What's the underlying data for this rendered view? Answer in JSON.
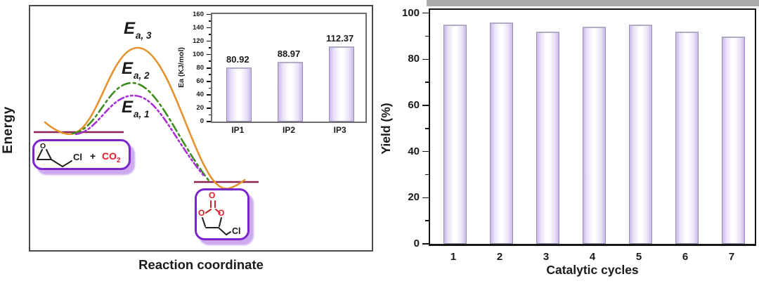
{
  "left_panel": {
    "ylabel": "Energy",
    "xlabel": "Reaction coordinate",
    "curve_labels": [
      {
        "main": "E",
        "sub": "a, 3"
      },
      {
        "main": "E",
        "sub": "a, 2"
      },
      {
        "main": "E",
        "sub": "a, 1"
      }
    ],
    "curves": [
      {
        "name": "Ea,3",
        "color": "#e2922f",
        "style": "solid",
        "barrier": "highest"
      },
      {
        "name": "Ea,2",
        "color": "#3e8d1e",
        "style": "dash-dot",
        "barrier": "middle"
      },
      {
        "name": "Ea,1",
        "color": "#a62fd8",
        "style": "dash-dot-dot",
        "barrier": "lowest"
      }
    ],
    "level_line_color": "#872451",
    "box_border_color": "#7c25cc",
    "reactant_box": {
      "epoxide_o": "O",
      "cl": "Cl",
      "plus": "+",
      "co2_main": "CO",
      "co2_sub": "2",
      "co2_color": "#e01b2c"
    },
    "product_box": {
      "o_top": "O",
      "o_left": "O",
      "o_right": "O",
      "cl": "Cl",
      "o_color": "#e01b2c"
    }
  },
  "chart_data": [
    {
      "type": "bar",
      "title": "",
      "xlabel": "",
      "ylabel": "Ea (KJ/mol)",
      "categories": [
        "IP1",
        "IP2",
        "IP3"
      ],
      "values": [
        80.92,
        88.97,
        112.37
      ],
      "value_labels": [
        "80.92",
        "88.97",
        "112.37"
      ],
      "ylim": [
        0,
        160
      ],
      "y_ticks": [
        0,
        20,
        40,
        60,
        80,
        100,
        120,
        140,
        160
      ],
      "y_minor_step": 10,
      "bar_fill_edge": "#c8b6ea",
      "bar_fill_center": "#ffffff",
      "grid": false,
      "legend": "none"
    },
    {
      "type": "bar",
      "title": "",
      "xlabel": "Catalytic cycles",
      "ylabel": "Yield (%)",
      "categories": [
        "1",
        "2",
        "3",
        "4",
        "5",
        "6",
        "7"
      ],
      "values": [
        95,
        96,
        92,
        94,
        95,
        92,
        90
      ],
      "ylim": [
        0,
        100
      ],
      "y_ticks": [
        0,
        20,
        40,
        60,
        80,
        100
      ],
      "y_minor_step": 10,
      "bar_fill_edge": "#c8b6ea",
      "bar_fill_center": "#ffffff",
      "grid": false,
      "legend": "none"
    },
    {
      "type": "line",
      "title": "",
      "xlabel": "Reaction coordinate",
      "ylabel": "Energy",
      "series": [
        {
          "name": "Ea, 3",
          "color": "#e2922f",
          "line_style": "solid",
          "barrier_rank": "highest"
        },
        {
          "name": "Ea, 2",
          "color": "#3e8d1e",
          "line_style": "dash-dot",
          "barrier_rank": "middle"
        },
        {
          "name": "Ea, 1",
          "color": "#a62fd8",
          "line_style": "dash-dot-dot",
          "barrier_rank": "lowest"
        }
      ],
      "annotations": [
        "Ea, 3",
        "Ea, 2",
        "Ea, 1"
      ],
      "axis_values": "none (schematic energy profile)"
    }
  ]
}
